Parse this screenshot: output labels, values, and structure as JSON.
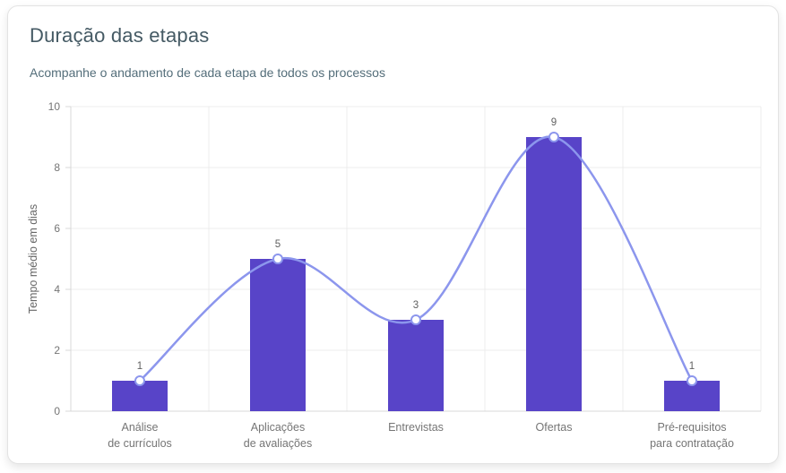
{
  "card": {
    "title": "Duração das etapas",
    "subtitle": "Acompanhe o andamento de cada etapa de todos os processos"
  },
  "chart_data": {
    "type": "bar",
    "overlay": "spline-line-with-markers",
    "title": "Duração das etapas",
    "categories": [
      "Análise\nde currículos",
      "Aplicações\nde avaliações",
      "Entrevistas",
      "Ofertas",
      "Pré-requisitos\npara contratação"
    ],
    "values": [
      1,
      5,
      3,
      9,
      1
    ],
    "data_labels": [
      "1",
      "5",
      "3",
      "9",
      "1"
    ],
    "xlabel": "",
    "ylabel": "Tempo médio em dias",
    "ylim": [
      0,
      10
    ],
    "yticks": [
      0,
      2,
      4,
      6,
      8,
      10
    ],
    "grid": true,
    "legend": "none",
    "colors": {
      "bar": "#5844C8",
      "line": "#8C96ED",
      "marker_fill": "#FFFFFF",
      "marker_stroke": "#8C96ED",
      "grid": "#ECECEC",
      "axis": "#D8D8D8",
      "tick_text": "#757575",
      "data_label": "#616161",
      "axis_title": "#666666"
    }
  }
}
